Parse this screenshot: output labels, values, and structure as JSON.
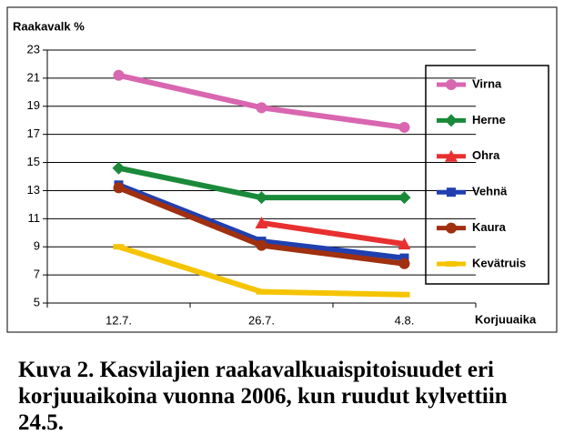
{
  "chart_data": {
    "type": "line",
    "y_label": "Raakavalk %",
    "x_label": "Korjuuaika",
    "caption": "Kuva 2. Kasvilajien raakavalkuaispitoisuudet eri korjuuaikoina vuonna 2006, kun ruudut kylvettiin 24.5.",
    "categories": [
      "12.7.",
      "26.7.",
      "4.8."
    ],
    "ylim": [
      5,
      23
    ],
    "yticks": [
      5,
      7,
      9,
      11,
      13,
      15,
      17,
      19,
      21,
      23
    ],
    "grid": true,
    "legend": "right",
    "series": [
      {
        "name": "Virna",
        "color": "#d966b0",
        "marker": "circle",
        "values": [
          21.2,
          18.9,
          17.5
        ]
      },
      {
        "name": "Herne",
        "color": "#1a8a3a",
        "marker": "diamond",
        "values": [
          14.6,
          12.5,
          12.5
        ]
      },
      {
        "name": "Ohra",
        "color": "#e83030",
        "marker": "triangle",
        "values": [
          null,
          10.7,
          9.2
        ]
      },
      {
        "name": "Vehnä",
        "color": "#2040b0",
        "marker": "square",
        "values": [
          13.4,
          9.4,
          8.2
        ]
      },
      {
        "name": "Kaura",
        "color": "#a03010",
        "marker": "circle",
        "values": [
          13.2,
          9.1,
          7.8
        ]
      },
      {
        "name": "Kevätruis",
        "color": "#f5c400",
        "marker": "bar",
        "values": [
          9.0,
          5.8,
          5.6
        ]
      }
    ]
  }
}
